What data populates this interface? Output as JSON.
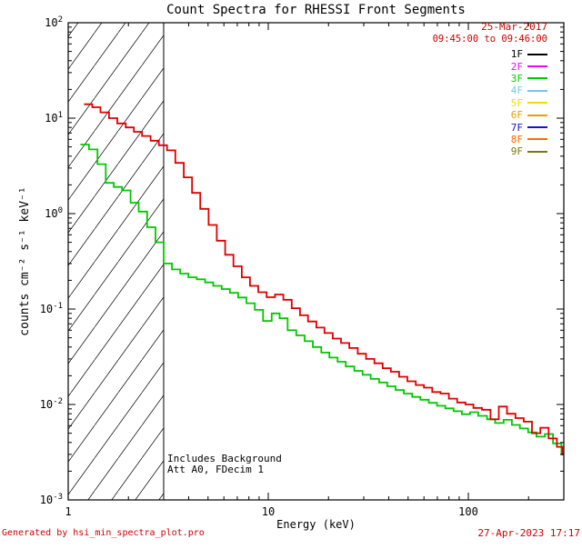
{
  "title": "Count Spectra for RHESSI Front Segments",
  "header": {
    "date": "25-Mar-2017",
    "time_range": "09:45:00 to 09:46:00"
  },
  "legend": {
    "items": [
      {
        "label": "1F",
        "color": "#000000"
      },
      {
        "label": "2F",
        "color": "#ff00ff"
      },
      {
        "label": "3F",
        "color": "#00cc00"
      },
      {
        "label": "4F",
        "color": "#74c6ee"
      },
      {
        "label": "5F",
        "color": "#eedd00"
      },
      {
        "label": "6F",
        "color": "#e8a000"
      },
      {
        "label": "7F",
        "color": "#1414c8"
      },
      {
        "label": "8F",
        "color": "#ff6a00"
      },
      {
        "label": "9F",
        "color": "#7a7a00"
      }
    ]
  },
  "annotations": [
    "Includes Background",
    "Att A0, FDecim 1"
  ],
  "footer": {
    "generated_by": "Generated by hsi_min_spectra_plot.pro",
    "timestamp": "27-Apr-2023 17:17"
  },
  "colors": {
    "text_red": "#cc0000",
    "series_red": "#dc0000",
    "series_green": "#00c800"
  },
  "chart_data": {
    "type": "line",
    "style": "histogram-step",
    "title": "Count Spectra for RHESSI Front Segments",
    "grid": false,
    "legend_position": "top-right",
    "x_axis": {
      "label": "Energy (keV)",
      "scale": "log",
      "range": [
        1,
        300
      ],
      "ticks": [
        1,
        10,
        100
      ]
    },
    "y_axis": {
      "label": "counts cm⁻² s⁻¹ keV⁻¹",
      "scale": "log",
      "range": [
        0.001,
        100
      ],
      "ticks": [
        0.001,
        0.01,
        0.1,
        1,
        10,
        100
      ]
    },
    "hatched_region": {
      "from": 1,
      "to": 3
    },
    "series": [
      {
        "name": "green-spectrum",
        "color": "#00c800",
        "points": [
          [
            1.15,
            5.3
          ],
          [
            1.27,
            4.7
          ],
          [
            1.4,
            3.3
          ],
          [
            1.54,
            2.1
          ],
          [
            1.69,
            1.9
          ],
          [
            1.86,
            1.75
          ],
          [
            2.05,
            1.3
          ],
          [
            2.25,
            1.05
          ],
          [
            2.48,
            0.72
          ],
          [
            2.73,
            0.5
          ],
          [
            3.0,
            0.3
          ],
          [
            3.3,
            0.26
          ],
          [
            3.63,
            0.235
          ],
          [
            3.99,
            0.215
          ],
          [
            4.39,
            0.205
          ],
          [
            4.83,
            0.19
          ],
          [
            5.31,
            0.175
          ],
          [
            5.85,
            0.162
          ],
          [
            6.43,
            0.148
          ],
          [
            7.07,
            0.132
          ],
          [
            7.78,
            0.115
          ],
          [
            8.56,
            0.098
          ],
          [
            9.42,
            0.075
          ],
          [
            10.4,
            0.09
          ],
          [
            11.4,
            0.08
          ],
          [
            12.5,
            0.06
          ],
          [
            13.8,
            0.053
          ],
          [
            15.2,
            0.046
          ],
          [
            16.7,
            0.04
          ],
          [
            18.4,
            0.035
          ],
          [
            20.2,
            0.031
          ],
          [
            22.2,
            0.028
          ],
          [
            24.4,
            0.025
          ],
          [
            26.9,
            0.0225
          ],
          [
            29.6,
            0.0205
          ],
          [
            32.5,
            0.0185
          ],
          [
            35.8,
            0.017
          ],
          [
            39.3,
            0.0155
          ],
          [
            43.3,
            0.0142
          ],
          [
            47.6,
            0.013
          ],
          [
            52.4,
            0.012
          ],
          [
            57.6,
            0.0112
          ],
          [
            63.4,
            0.0104
          ],
          [
            69.7,
            0.0097
          ],
          [
            76.7,
            0.0091
          ],
          [
            84.4,
            0.0085
          ],
          [
            92.8,
            0.0079
          ],
          [
            102,
            0.0083
          ],
          [
            112,
            0.0076
          ],
          [
            124,
            0.007
          ],
          [
            136,
            0.0064
          ],
          [
            150,
            0.0069
          ],
          [
            165,
            0.0061
          ],
          [
            181,
            0.0056
          ],
          [
            199,
            0.0051
          ],
          [
            219,
            0.0046
          ],
          [
            241,
            0.0049
          ],
          [
            265,
            0.0039
          ],
          [
            292,
            0.003
          ]
        ]
      },
      {
        "name": "red-spectrum",
        "color": "#dc0000",
        "points": [
          [
            1.2,
            14.0
          ],
          [
            1.32,
            13.0
          ],
          [
            1.45,
            11.5
          ],
          [
            1.6,
            10.0
          ],
          [
            1.76,
            8.8
          ],
          [
            1.94,
            8.0
          ],
          [
            2.13,
            7.2
          ],
          [
            2.34,
            6.5
          ],
          [
            2.58,
            5.8
          ],
          [
            2.84,
            5.2
          ],
          [
            3.12,
            4.6
          ],
          [
            3.43,
            3.4
          ],
          [
            3.78,
            2.4
          ],
          [
            4.16,
            1.65
          ],
          [
            4.57,
            1.12
          ],
          [
            5.03,
            0.76
          ],
          [
            5.53,
            0.52
          ],
          [
            6.09,
            0.37
          ],
          [
            6.7,
            0.28
          ],
          [
            7.37,
            0.215
          ],
          [
            8.1,
            0.175
          ],
          [
            8.91,
            0.15
          ],
          [
            9.81,
            0.133
          ],
          [
            10.8,
            0.142
          ],
          [
            11.9,
            0.125
          ],
          [
            13.1,
            0.102
          ],
          [
            14.4,
            0.086
          ],
          [
            15.8,
            0.074
          ],
          [
            17.4,
            0.064
          ],
          [
            19.1,
            0.056
          ],
          [
            21.0,
            0.049
          ],
          [
            23.1,
            0.044
          ],
          [
            25.4,
            0.039
          ],
          [
            28.0,
            0.034
          ],
          [
            30.8,
            0.03
          ],
          [
            33.9,
            0.027
          ],
          [
            37.3,
            0.024
          ],
          [
            41.0,
            0.022
          ],
          [
            45.1,
            0.0195
          ],
          [
            49.6,
            0.0175
          ],
          [
            54.6,
            0.016
          ],
          [
            60.0,
            0.015
          ],
          [
            66.0,
            0.0135
          ],
          [
            72.6,
            0.013
          ],
          [
            79.9,
            0.0115
          ],
          [
            87.9,
            0.0105
          ],
          [
            96.7,
            0.01
          ],
          [
            106,
            0.0092
          ],
          [
            117,
            0.0088
          ],
          [
            129,
            0.007
          ],
          [
            142,
            0.0095
          ],
          [
            156,
            0.008
          ],
          [
            172,
            0.0072
          ],
          [
            189,
            0.0066
          ],
          [
            208,
            0.005
          ],
          [
            229,
            0.0057
          ],
          [
            252,
            0.0044
          ],
          [
            277,
            0.0036
          ],
          [
            295,
            0.003
          ]
        ]
      }
    ]
  }
}
